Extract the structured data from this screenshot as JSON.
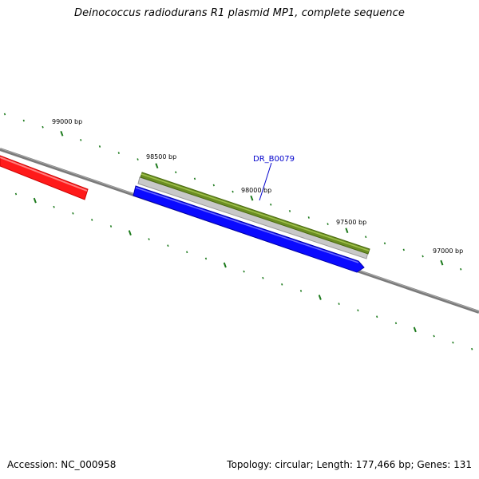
{
  "title": "Deinococcus radiodurans R1 plasmid MP1, complete sequence",
  "footer": {
    "accession": "Accession: NC_000958",
    "summary": "Topology: circular; Length: 177,466 bp; Genes: 131"
  },
  "map": {
    "position_labels": [
      "99000 bp",
      "98500 bp",
      "98000 bp",
      "97500 bp",
      "97000 bp"
    ],
    "gene_label": "DR_B0079",
    "colors": {
      "backbone": "#6e6e6e",
      "tick": "#1c7a1c",
      "gene_forward_red": "#ff0000",
      "gene_green": "#6b8e23",
      "gene_blue": "#0000ff",
      "label": "#0000cc"
    }
  }
}
